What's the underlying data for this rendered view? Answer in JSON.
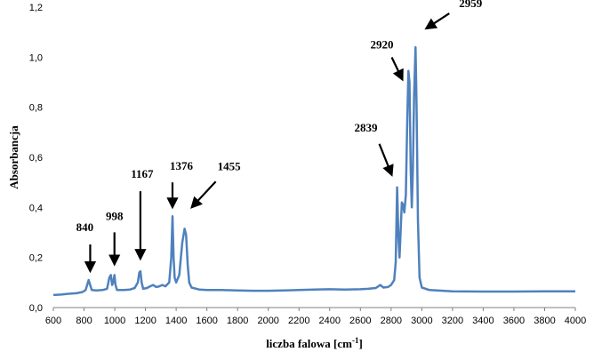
{
  "chart_data": {
    "type": "line",
    "title": "",
    "xlabel": "liczba falowa [cm",
    "xlabel_sup": "-1",
    "xlabel_suffix": "]",
    "ylabel": "Absorbancja",
    "xlim": [
      600,
      4000
    ],
    "ylim": [
      0,
      1.2
    ],
    "x_ticks": [
      "600",
      "800",
      "1000",
      "1200",
      "1400",
      "1600",
      "1800",
      "2000",
      "2200",
      "2400",
      "2600",
      "2800",
      "3000",
      "3200",
      "3400",
      "3600",
      "3800",
      "4000"
    ],
    "y_ticks": [
      "0,0",
      "0,2",
      "0,4",
      "0,6",
      "0,8",
      "1,0",
      "1,2"
    ],
    "grid": false,
    "series": [
      {
        "color": "#4f81bd",
        "points": [
          [
            600,
            0.05
          ],
          [
            650,
            0.052
          ],
          [
            700,
            0.055
          ],
          [
            750,
            0.057
          ],
          [
            790,
            0.062
          ],
          [
            810,
            0.07
          ],
          [
            820,
            0.09
          ],
          [
            830,
            0.11
          ],
          [
            840,
            0.09
          ],
          [
            850,
            0.07
          ],
          [
            880,
            0.068
          ],
          [
            920,
            0.07
          ],
          [
            950,
            0.075
          ],
          [
            965,
            0.12
          ],
          [
            975,
            0.13
          ],
          [
            983,
            0.09
          ],
          [
            990,
            0.1
          ],
          [
            998,
            0.13
          ],
          [
            1005,
            0.09
          ],
          [
            1015,
            0.07
          ],
          [
            1060,
            0.07
          ],
          [
            1100,
            0.072
          ],
          [
            1130,
            0.078
          ],
          [
            1150,
            0.1
          ],
          [
            1160,
            0.14
          ],
          [
            1167,
            0.145
          ],
          [
            1175,
            0.1
          ],
          [
            1185,
            0.075
          ],
          [
            1210,
            0.078
          ],
          [
            1230,
            0.085
          ],
          [
            1250,
            0.09
          ],
          [
            1270,
            0.082
          ],
          [
            1290,
            0.085
          ],
          [
            1310,
            0.09
          ],
          [
            1330,
            0.085
          ],
          [
            1355,
            0.1
          ],
          [
            1368,
            0.2
          ],
          [
            1376,
            0.365
          ],
          [
            1383,
            0.2
          ],
          [
            1390,
            0.12
          ],
          [
            1400,
            0.1
          ],
          [
            1420,
            0.13
          ],
          [
            1440,
            0.26
          ],
          [
            1455,
            0.315
          ],
          [
            1465,
            0.29
          ],
          [
            1475,
            0.17
          ],
          [
            1485,
            0.1
          ],
          [
            1500,
            0.08
          ],
          [
            1550,
            0.072
          ],
          [
            1600,
            0.07
          ],
          [
            1700,
            0.07
          ],
          [
            1800,
            0.068
          ],
          [
            1900,
            0.067
          ],
          [
            2000,
            0.067
          ],
          [
            2100,
            0.068
          ],
          [
            2200,
            0.07
          ],
          [
            2300,
            0.072
          ],
          [
            2400,
            0.073
          ],
          [
            2500,
            0.072
          ],
          [
            2600,
            0.073
          ],
          [
            2650,
            0.075
          ],
          [
            2700,
            0.078
          ],
          [
            2730,
            0.09
          ],
          [
            2750,
            0.08
          ],
          [
            2780,
            0.082
          ],
          [
            2800,
            0.09
          ],
          [
            2820,
            0.11
          ],
          [
            2830,
            0.18
          ],
          [
            2839,
            0.48
          ],
          [
            2848,
            0.28
          ],
          [
            2855,
            0.2
          ],
          [
            2862,
            0.3
          ],
          [
            2870,
            0.42
          ],
          [
            2878,
            0.41
          ],
          [
            2886,
            0.38
          ],
          [
            2896,
            0.45
          ],
          [
            2905,
            0.75
          ],
          [
            2913,
            0.945
          ],
          [
            2920,
            0.9
          ],
          [
            2928,
            0.55
          ],
          [
            2935,
            0.4
          ],
          [
            2942,
            0.55
          ],
          [
            2950,
            0.85
          ],
          [
            2959,
            1.04
          ],
          [
            2966,
            0.8
          ],
          [
            2975,
            0.35
          ],
          [
            2985,
            0.12
          ],
          [
            3000,
            0.08
          ],
          [
            3050,
            0.07
          ],
          [
            3200,
            0.065
          ],
          [
            3400,
            0.064
          ],
          [
            3600,
            0.064
          ],
          [
            3800,
            0.065
          ],
          [
            4000,
            0.065
          ]
        ]
      }
    ],
    "annotations": [
      {
        "text": "840",
        "x": 840,
        "y": 0.11
      },
      {
        "text": "998",
        "x": 998,
        "y": 0.13
      },
      {
        "text": "1167",
        "x": 1167,
        "y": 0.145
      },
      {
        "text": "1376",
        "x": 1376,
        "y": 0.365
      },
      {
        "text": "1455",
        "x": 1455,
        "y": 0.315
      },
      {
        "text": "2839",
        "x": 2839,
        "y": 0.48
      },
      {
        "text": "2920",
        "x": 2920,
        "y": 0.9
      },
      {
        "text": "2959",
        "x": 2959,
        "y": 1.04
      }
    ]
  }
}
